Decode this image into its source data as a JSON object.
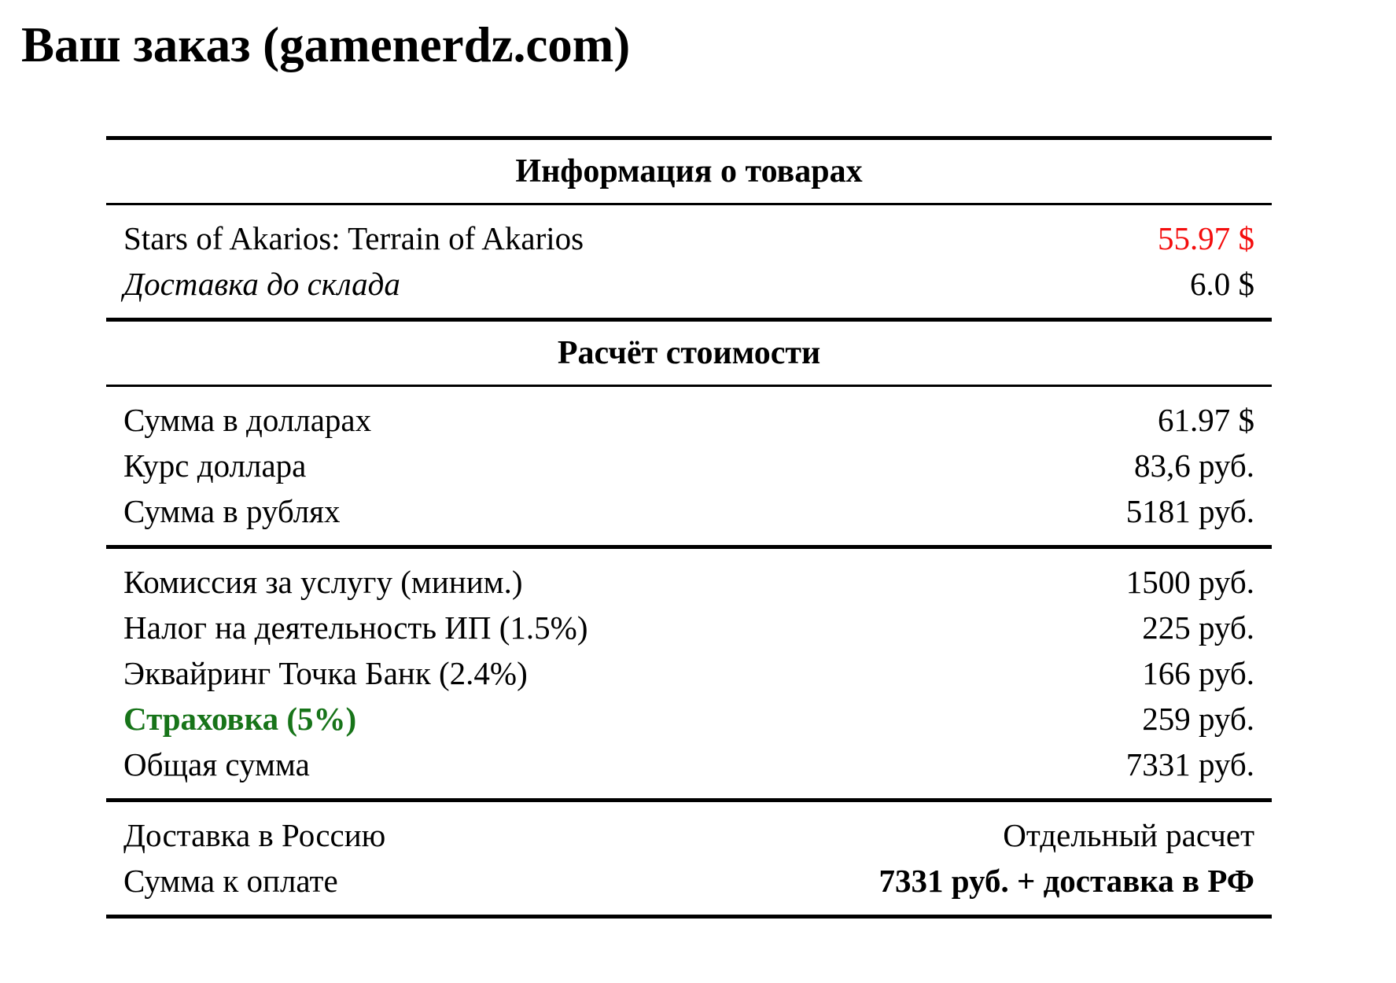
{
  "title": "Ваш заказ (gamenerdz.com)",
  "colors": {
    "price_alert": "#f40d0d",
    "insurance_green": "#177419"
  },
  "table": {
    "section1_header": "Информация о товарах",
    "section2_header": "Расчёт стоимости",
    "products": [
      {
        "label": "Stars of Akarios: Terrain of Akarios",
        "value": "55.97 $"
      },
      {
        "label": "Доставка до склада",
        "value": "6.0 $"
      }
    ],
    "currency_calc": [
      {
        "label": "Сумма в долларах",
        "value": "61.97 $"
      },
      {
        "label": "Курс доллара",
        "value": "83,6 руб."
      },
      {
        "label": "Сумма в рублях",
        "value": "5181 руб."
      }
    ],
    "fees": [
      {
        "label": "Комиссия за услугу (миним.)",
        "value": "1500 руб."
      },
      {
        "label": "Налог на деятельность ИП (1.5%)",
        "value": "225 руб."
      },
      {
        "label": "Эквайринг Точка Банк (2.4%)",
        "value": "166 руб."
      },
      {
        "label": "Страховка (5%)",
        "value": "259 руб."
      },
      {
        "label": "Общая сумма",
        "value": "7331 руб."
      }
    ],
    "delivery": [
      {
        "label": "Доставка в Россию",
        "value": "Отдельный расчет"
      },
      {
        "label": "Сумма к оплате",
        "value": "7331 руб. + доставка в РФ"
      }
    ]
  }
}
